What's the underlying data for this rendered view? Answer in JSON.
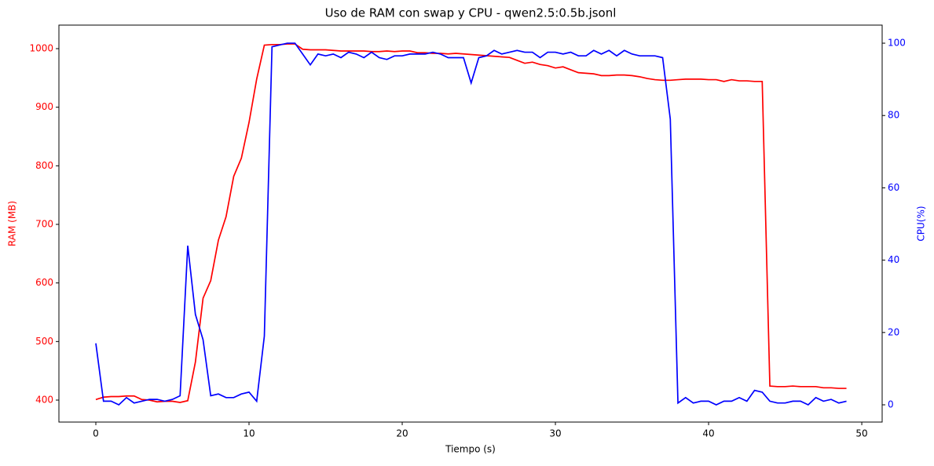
{
  "chart_data": {
    "type": "line",
    "title": "Uso de RAM con swap y CPU - qwen2.5:0.5b.jsonl",
    "x_label": "Tiempo (s)",
    "y_label": "RAM (MB)",
    "y2_label": "CPU(%)",
    "x": [
      0,
      0.5,
      1,
      1.5,
      2,
      2.5,
      3,
      3.5,
      4,
      4.5,
      5,
      5.5,
      6,
      6.5,
      7,
      7.5,
      8,
      8.5,
      9,
      9.5,
      10,
      10.5,
      11,
      11.5,
      12,
      12.5,
      13,
      13.5,
      14,
      14.5,
      15,
      15.5,
      16,
      16.5,
      17,
      17.5,
      18,
      18.5,
      19,
      19.5,
      20,
      20.5,
      21,
      21.5,
      22,
      22.5,
      23,
      23.5,
      24,
      24.5,
      25,
      25.5,
      26,
      26.5,
      27,
      27.5,
      28,
      28.5,
      29,
      29.5,
      30,
      30.5,
      31,
      31.5,
      32,
      32.5,
      33,
      33.5,
      34,
      34.5,
      35,
      35.5,
      36,
      36.5,
      37,
      37.5,
      38,
      38.5,
      39,
      39.5,
      40,
      40.5,
      41,
      41.5,
      42,
      42.5,
      43,
      43.5,
      44,
      44.5,
      45,
      45.5,
      46,
      46.5,
      47,
      47.5,
      48,
      48.5,
      49
    ],
    "series": [
      {
        "color": "#ff0000",
        "axis": "y",
        "values": [
          401,
          405,
          406,
          406,
          407,
          407,
          401,
          400,
          397,
          398,
          398,
          396,
          399,
          465,
          574,
          604,
          673,
          713,
          782,
          813,
          874,
          948,
          1006,
          1007,
          1007,
          1008,
          1008,
          999,
          998,
          998,
          998,
          997,
          996,
          996,
          996,
          996,
          995,
          995,
          996,
          995,
          996,
          996,
          993,
          993,
          992,
          992,
          991,
          992,
          991,
          990,
          989,
          988,
          987,
          986,
          985,
          980,
          975,
          977,
          973,
          971,
          967,
          969,
          964,
          959,
          958,
          957,
          954,
          954,
          955,
          955,
          954,
          952,
          949,
          947,
          946,
          946,
          947,
          948,
          948,
          948,
          947,
          947,
          944,
          947,
          945,
          945,
          944,
          944,
          424,
          423,
          423,
          424,
          423,
          423,
          423,
          421,
          421,
          420,
          420
        ]
      },
      {
        "color": "#0000ff",
        "axis": "y2",
        "values": [
          17,
          1,
          1,
          0,
          2,
          0.5,
          1,
          1.5,
          1.5,
          1,
          1.5,
          2.5,
          44,
          25,
          18,
          2.5,
          3,
          2,
          2,
          3,
          3.5,
          1,
          19,
          99,
          99.5,
          100,
          100,
          97,
          94,
          97,
          96.5,
          97,
          96,
          97.5,
          97,
          96,
          97.5,
          96,
          95.5,
          96.5,
          96.5,
          97,
          97,
          97,
          97.5,
          97,
          96,
          96,
          96,
          89,
          96,
          96.5,
          98,
          97,
          97.5,
          98,
          97.5,
          97.5,
          96,
          97.5,
          97.5,
          97,
          97.5,
          96.5,
          96.5,
          98,
          97,
          98,
          96.5,
          98,
          97,
          96.5,
          96.5,
          96.5,
          96,
          79,
          0.5,
          2,
          0.5,
          1,
          1,
          0,
          1,
          1,
          2,
          1,
          4,
          3.5,
          1,
          0.5,
          0.5,
          1,
          1,
          0,
          2,
          1,
          1.5,
          0.5,
          1
        ]
      }
    ],
    "xlim": [
      -2.41,
      51.33
    ],
    "xticks": [
      0,
      10,
      20,
      30,
      40,
      50
    ],
    "ylim": [
      362.5,
      1040.2
    ],
    "yticks": [
      400,
      500,
      600,
      700,
      800,
      900,
      1000
    ],
    "y2lim": [
      -4.77,
      105.0
    ],
    "y2ticks": [
      0,
      20,
      40,
      60,
      80,
      100
    ],
    "y_color": "#ff0000",
    "y2_color": "#0000ff"
  }
}
